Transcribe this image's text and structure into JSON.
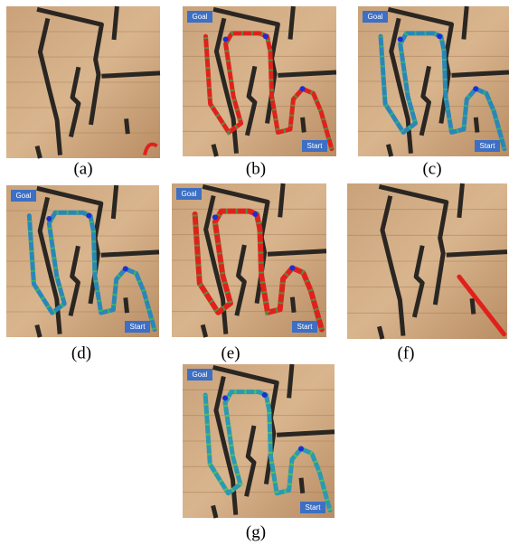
{
  "panels": [
    {
      "label": "(a)"
    },
    {
      "label": "(b)",
      "goal": "Goal",
      "start": "Start"
    },
    {
      "label": "(c)",
      "goal": "Goal",
      "start": "Start"
    },
    {
      "label": "(d)",
      "goal": "Goal",
      "start": "Start"
    },
    {
      "label": "(e)",
      "goal": "Goal",
      "start": "Start"
    },
    {
      "label": "(f)"
    },
    {
      "label": "(g)",
      "goal": "Goal",
      "start": "Start"
    }
  ]
}
